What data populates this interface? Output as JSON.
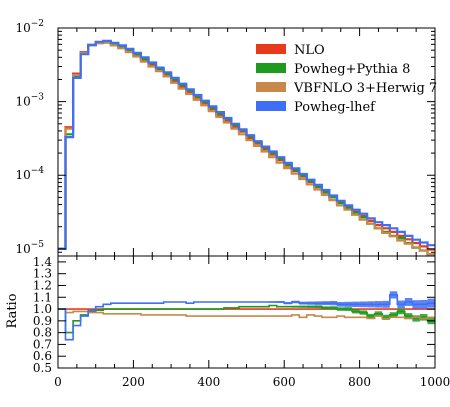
{
  "chart_data": [
    {
      "type": "line",
      "yscale": "log",
      "xlim": [
        0,
        1000
      ],
      "ylim": [
        8e-06,
        0.01
      ],
      "yticks": [
        {
          "value": 0.01,
          "base": "10",
          "exp": "−2"
        },
        {
          "value": 0.001,
          "base": "10",
          "exp": "−3"
        },
        {
          "value": 0.0001,
          "base": "10",
          "exp": "−4"
        },
        {
          "value": 1e-05,
          "base": "10",
          "exp": "−5"
        }
      ],
      "legend": {
        "placement": "top-right"
      },
      "x_edges": [
        0,
        20,
        40,
        60,
        80,
        100,
        120,
        140,
        160,
        180,
        200,
        220,
        240,
        260,
        280,
        300,
        320,
        340,
        360,
        380,
        400,
        420,
        440,
        460,
        480,
        500,
        520,
        540,
        560,
        580,
        600,
        620,
        640,
        660,
        680,
        700,
        720,
        740,
        760,
        780,
        800,
        820,
        840,
        860,
        880,
        900,
        920,
        940,
        960,
        980,
        1000
      ],
      "series": [
        {
          "name": "NLO",
          "color": "#e8391c",
          "values": [
            1e-05,
            0.00045,
            0.0024,
            0.0047,
            0.0059,
            0.0063,
            0.0064,
            0.006,
            0.0055,
            0.0049,
            0.0043,
            0.0037,
            0.0032,
            0.0027,
            0.0023,
            0.0019,
            0.0016,
            0.00135,
            0.00113,
            0.00095,
            0.00079,
            0.00066,
            0.00055,
            0.00046,
            0.00039,
            0.00032,
            0.00027,
            0.000225,
            0.00019,
            0.00016,
            0.000135,
            0.000114,
            9.6e-05,
            8.1e-05,
            6.9e-05,
            5.8e-05,
            5e-05,
            4.3e-05,
            3.7e-05,
            3.2e-05,
            2.8e-05,
            2.4e-05,
            2.1e-05,
            1.9e-05,
            1.7e-05,
            1.5e-05,
            1.35e-05,
            1.2e-05,
            1.08e-05,
            9.8e-06
          ]
        },
        {
          "name": "Powheg+Pythia 8",
          "color": "#1e9a1e",
          "values": [
            1e-05,
            0.00036,
            0.0022,
            0.0045,
            0.0058,
            0.0063,
            0.0065,
            0.0061,
            0.0056,
            0.005,
            0.0044,
            0.0038,
            0.0033,
            0.0028,
            0.0024,
            0.002,
            0.00167,
            0.00141,
            0.00118,
            0.00099,
            0.00082,
            0.00069,
            0.00058,
            0.00048,
            0.00041,
            0.00034,
            0.00028,
            0.000235,
            0.0002,
            0.000168,
            0.00014,
            0.000117,
            9.9e-05,
            8.3e-05,
            7e-05,
            5.9e-05,
            5e-05,
            4.2e-05,
            3.6e-05,
            3.1e-05,
            2.7e-05,
            2.2e-05,
            1.9e-05,
            1.7e-05,
            1.5e-05,
            1.4e-05,
            1.2e-05,
            1.04e-05,
            9.5e-06,
            8.5e-06
          ]
        },
        {
          "name": "VBFNLO 3+Herwig 7",
          "color": "#c8884a",
          "values": [
            1e-05,
            0.00043,
            0.0023,
            0.0046,
            0.0058,
            0.0062,
            0.0063,
            0.0058,
            0.0053,
            0.0047,
            0.0041,
            0.0035,
            0.003,
            0.0026,
            0.0022,
            0.0018,
            0.0015,
            0.00127,
            0.00106,
            0.00089,
            0.00074,
            0.00062,
            0.00052,
            0.00043,
            0.00036,
            0.0003,
            0.00025,
            0.00021,
            0.000176,
            0.000148,
            0.000125,
            0.000105,
            8.9e-05,
            7.5e-05,
            6.4e-05,
            5.4e-05,
            4.6e-05,
            3.9e-05,
            3.4e-05,
            2.9e-05,
            2.5e-05,
            2.2e-05,
            1.9e-05,
            1.65e-05,
            1.48e-05,
            1.3e-05,
            1.18e-05,
            1.05e-05,
            9.5e-06,
            8.5e-06
          ]
        },
        {
          "name": "Powheg-lhef",
          "color": "#3f6ff6",
          "values": [
            1e-05,
            0.00033,
            0.0021,
            0.0044,
            0.0059,
            0.0065,
            0.0067,
            0.0063,
            0.0058,
            0.0052,
            0.0046,
            0.004,
            0.0034,
            0.0029,
            0.0025,
            0.0021,
            0.00175,
            0.00147,
            0.00123,
            0.00103,
            0.00086,
            0.00072,
            0.0006,
            0.0005,
            0.00042,
            0.00035,
            0.00029,
            0.000245,
            0.00021,
            0.000176,
            0.000147,
            0.000124,
            0.000104,
            8.7e-05,
            7.4e-05,
            6.3e-05,
            5.3e-05,
            4.5e-05,
            3.9e-05,
            3.4e-05,
            3e-05,
            2.6e-05,
            2.3e-05,
            2.1e-05,
            1.9e-05,
            1.7e-05,
            1.5e-05,
            1.33e-05,
            1.22e-05,
            1.12e-05
          ]
        }
      ]
    },
    {
      "type": "line",
      "ylabel": "Ratio",
      "xlim": [
        0,
        1000
      ],
      "ylim": [
        0.5,
        1.45
      ],
      "xticks": [
        0,
        200,
        400,
        600,
        800,
        1000
      ],
      "yticks": [
        0.5,
        0.6,
        0.7,
        0.8,
        0.9,
        1.0,
        1.1,
        1.2,
        1.3,
        1.4
      ],
      "ytick_labels": [
        "0.5",
        "0.6",
        "0.7",
        "0.8",
        "0.9",
        "1.0",
        "1.1",
        "1.2",
        "1.3",
        "1.4"
      ],
      "x_edges": [
        0,
        20,
        40,
        60,
        80,
        100,
        120,
        140,
        160,
        180,
        200,
        220,
        240,
        260,
        280,
        300,
        320,
        340,
        360,
        380,
        400,
        420,
        440,
        460,
        480,
        500,
        520,
        540,
        560,
        580,
        600,
        620,
        640,
        660,
        680,
        700,
        720,
        740,
        760,
        780,
        800,
        820,
        840,
        860,
        880,
        900,
        920,
        940,
        960,
        980,
        1000
      ],
      "series": [
        {
          "name": "NLO",
          "color": "#e8391c",
          "values": [
            1,
            1,
            1,
            1,
            1,
            1,
            1,
            1,
            1,
            1,
            1,
            1,
            1,
            1,
            1,
            1,
            1,
            1,
            1,
            1,
            1,
            1,
            1,
            1,
            1,
            1,
            1,
            1,
            1,
            1,
            1,
            1,
            1,
            1,
            1,
            1,
            1,
            1,
            1,
            1,
            1,
            1,
            1,
            1,
            1,
            1,
            1,
            1,
            1,
            1
          ]
        },
        {
          "name": "Powheg+Pythia 8",
          "color": "#1e9a1e",
          "values": [
            1,
            0.8,
            0.9,
            0.95,
            0.98,
            0.99,
            1.0,
            1.0,
            1.0,
            1.0,
            1.0,
            1.0,
            1.0,
            1.0,
            1.0,
            1.0,
            1.0,
            1.0,
            1.0,
            1.0,
            1.0,
            1.0,
            1.01,
            1.01,
            1.02,
            1.02,
            1.02,
            1.02,
            1.03,
            1.02,
            1.02,
            1.02,
            1.02,
            1.02,
            1.02,
            1.01,
            1.01,
            1.0,
            1.0,
            0.98,
            0.97,
            0.94,
            0.96,
            0.93,
            0.95,
            0.98,
            0.94,
            0.92,
            0.93,
            0.9
          ],
          "band": 0.03
        },
        {
          "name": "VBFNLO 3+Herwig 7",
          "color": "#c8884a",
          "values": [
            1,
            0.97,
            0.98,
            0.98,
            0.97,
            0.97,
            0.96,
            0.96,
            0.96,
            0.96,
            0.96,
            0.95,
            0.95,
            0.95,
            0.95,
            0.95,
            0.95,
            0.94,
            0.94,
            0.94,
            0.94,
            0.94,
            0.94,
            0.94,
            0.94,
            0.94,
            0.94,
            0.94,
            0.94,
            0.94,
            0.94,
            0.95,
            0.93,
            0.95,
            0.94,
            0.93,
            0.93,
            0.94,
            0.93,
            0.93,
            0.93,
            0.92,
            0.94,
            0.92,
            0.93,
            0.93,
            0.92,
            0.93,
            0.92,
            0.93
          ]
        },
        {
          "name": "Powheg-lhef",
          "color": "#3f6ff6",
          "values": [
            1,
            0.74,
            0.86,
            0.94,
            0.99,
            1.02,
            1.04,
            1.05,
            1.05,
            1.05,
            1.05,
            1.05,
            1.05,
            1.05,
            1.06,
            1.06,
            1.06,
            1.05,
            1.06,
            1.06,
            1.06,
            1.06,
            1.06,
            1.06,
            1.06,
            1.06,
            1.06,
            1.06,
            1.06,
            1.06,
            1.05,
            1.06,
            1.05,
            1.05,
            1.05,
            1.05,
            1.05,
            1.04,
            1.04,
            1.04,
            1.04,
            1.04,
            1.04,
            1.04,
            1.12,
            1.04,
            1.06,
            1.04,
            1.04,
            1.05
          ],
          "band": 0.04
        }
      ]
    }
  ]
}
